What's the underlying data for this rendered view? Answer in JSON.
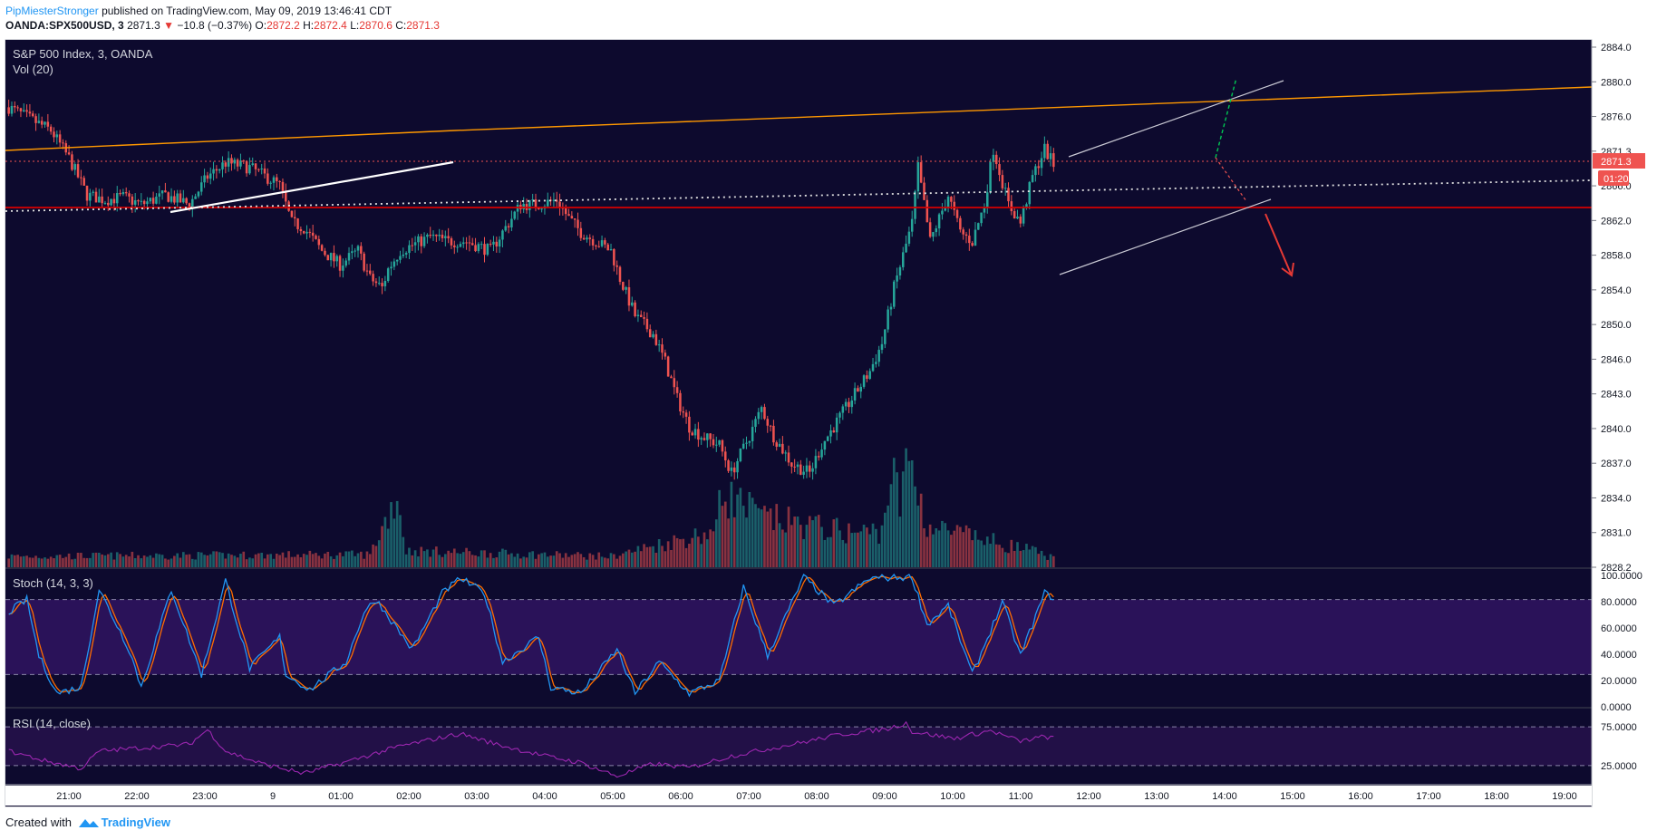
{
  "header": {
    "author": "PipMiesterStronger",
    "published": "published on TradingView.com, May 09, 2019 13:46:41 CDT",
    "symbol": "OANDA:SPX500USD, 3",
    "last": "2871.3",
    "change": "−10.8 (−0.37%)",
    "o_label": "O:",
    "o_val": "2872.2",
    "h_label": "H:",
    "h_val": "2872.4",
    "l_label": "L:",
    "l_val": "2870.6",
    "c_label": "C:",
    "c_val": "2871.3"
  },
  "panes": {
    "main_title": "S&P 500 Index, 3, OANDA",
    "vol_title": "Vol (20)",
    "stoch_title": "Stoch (14, 3, 3)",
    "rsi_title": "RSI (14, close)"
  },
  "price_axis": {
    "ticks": [
      "2884.0",
      "2880.0",
      "2876.0",
      "2871.3",
      "2866.0",
      "2862.0",
      "2858.0",
      "2854.0",
      "2850.0",
      "2846.0",
      "2843.0",
      "2840.0",
      "2837.0",
      "2834.0",
      "2831.0",
      "2828.2"
    ],
    "last_price_tag": "2871.3",
    "countdown_tag": "01:20"
  },
  "stoch_axis": {
    "ticks": [
      "100.0000",
      "80.0000",
      "60.0000",
      "40.0000",
      "20.0000",
      "0.0000"
    ]
  },
  "rsi_axis": {
    "ticks": [
      "75.0000",
      "25.0000"
    ]
  },
  "time_axis": {
    "ticks": [
      "21:00",
      "22:00",
      "23:00",
      "9",
      "01:00",
      "02:00",
      "03:00",
      "04:00",
      "05:00",
      "06:00",
      "07:00",
      "08:00",
      "09:00",
      "10:00",
      "11:00",
      "12:00",
      "13:00",
      "14:00",
      "15:00",
      "16:00",
      "17:00",
      "18:00",
      "19:00"
    ]
  },
  "footer": {
    "created": "Created with",
    "brand": "TradingView"
  },
  "colors": {
    "background": "#0d0a2e",
    "up": "#26a69a",
    "down": "#ef5350",
    "stoch_k": "#2196f3",
    "stoch_d": "#ff6d00",
    "stoch_band": "#2a1259",
    "rsi_line": "#9c27b0",
    "rsi_band": "#221047",
    "trend_orange": "#ff9800",
    "support_red": "#d50000",
    "arrow_red": "#e53935",
    "dotted_green": "#00c853"
  },
  "chart_data": {
    "type": "candlestick",
    "instrument": "S&P 500 Index, 3, OANDA",
    "interval_minutes": 3,
    "price_ylim": [
      2828.2,
      2884.0
    ],
    "time_labels": [
      "21:00",
      "22:00",
      "23:00",
      "9",
      "01:00",
      "02:00",
      "03:00",
      "04:00",
      "05:00",
      "06:00",
      "07:00",
      "08:00",
      "09:00",
      "10:00",
      "11:00",
      "12:00",
      "13:00",
      "14:00",
      "15:00",
      "16:00",
      "17:00",
      "18:00",
      "19:00"
    ],
    "price_path": [
      [
        0,
        2877.5
      ],
      [
        14,
        2875
      ],
      [
        20,
        2872
      ],
      [
        26,
        2868
      ],
      [
        32,
        2867.5
      ],
      [
        38,
        2867.8
      ],
      [
        44,
        2867
      ],
      [
        52,
        2868
      ],
      [
        60,
        2867
      ],
      [
        66,
        2870
      ],
      [
        72,
        2871.5
      ],
      [
        80,
        2871
      ],
      [
        88,
        2869.5
      ],
      [
        90,
        2869
      ],
      [
        94,
        2865
      ],
      [
        98,
        2864.5
      ],
      [
        104,
        2862
      ],
      [
        110,
        2860.5
      ],
      [
        116,
        2862
      ],
      [
        120,
        2859
      ],
      [
        124,
        2858
      ],
      [
        126,
        2860
      ],
      [
        130,
        2862
      ],
      [
        140,
        2863.5
      ],
      [
        146,
        2863
      ],
      [
        152,
        2863
      ],
      [
        160,
        2862
      ],
      [
        166,
        2865
      ],
      [
        170,
        2867
      ],
      [
        176,
        2867
      ],
      [
        182,
        2867.5
      ],
      [
        186,
        2865.5
      ],
      [
        190,
        2864
      ],
      [
        196,
        2862.8
      ],
      [
        200,
        2862
      ],
      [
        203,
        2859
      ],
      [
        208,
        2855
      ],
      [
        214,
        2853
      ],
      [
        218,
        2850
      ],
      [
        222,
        2846
      ],
      [
        226,
        2843
      ],
      [
        230,
        2842
      ],
      [
        236,
        2841
      ],
      [
        240,
        2838
      ],
      [
        246,
        2842
      ],
      [
        250,
        2845
      ],
      [
        254,
        2842
      ],
      [
        260,
        2839
      ],
      [
        266,
        2838
      ],
      [
        270,
        2841
      ],
      [
        276,
        2844
      ],
      [
        280,
        2846
      ],
      [
        286,
        2849
      ],
      [
        290,
        2852
      ],
      [
        294,
        2858
      ],
      [
        300,
        2865
      ],
      [
        302,
        2871
      ],
      [
        306,
        2863
      ],
      [
        312,
        2868
      ],
      [
        316,
        2864
      ],
      [
        320,
        2863
      ],
      [
        324,
        2867
      ],
      [
        327,
        2873
      ],
      [
        332,
        2867
      ],
      [
        336,
        2865
      ],
      [
        340,
        2870
      ],
      [
        344,
        2873
      ],
      [
        347,
        2871.3
      ]
    ],
    "volume_path": [
      [
        0,
        12
      ],
      [
        120,
        14
      ],
      [
        129,
        80
      ],
      [
        132,
        18
      ],
      [
        200,
        12
      ],
      [
        235,
        40
      ],
      [
        236,
        85
      ],
      [
        250,
        55
      ],
      [
        280,
        38
      ],
      [
        290,
        40
      ],
      [
        293,
        108
      ],
      [
        296,
        70
      ],
      [
        299,
        124
      ],
      [
        305,
        45
      ],
      [
        340,
        18
      ],
      [
        347,
        10
      ]
    ],
    "stoch_ylim": [
      0,
      100
    ],
    "stoch_levels": [
      80,
      20
    ],
    "stoch_k_path": [
      [
        0,
        70
      ],
      [
        6,
        80
      ],
      [
        10,
        35
      ],
      [
        16,
        5
      ],
      [
        24,
        10
      ],
      [
        30,
        88
      ],
      [
        40,
        40
      ],
      [
        44,
        10
      ],
      [
        54,
        88
      ],
      [
        64,
        20
      ],
      [
        72,
        95
      ],
      [
        80,
        25
      ],
      [
        90,
        50
      ],
      [
        92,
        20
      ],
      [
        100,
        8
      ],
      [
        112,
        30
      ],
      [
        118,
        70
      ],
      [
        122,
        80
      ],
      [
        134,
        40
      ],
      [
        144,
        85
      ],
      [
        150,
        97
      ],
      [
        158,
        85
      ],
      [
        164,
        30
      ],
      [
        176,
        50
      ],
      [
        180,
        10
      ],
      [
        190,
        5
      ],
      [
        202,
        40
      ],
      [
        208,
        5
      ],
      [
        216,
        30
      ],
      [
        226,
        5
      ],
      [
        236,
        15
      ],
      [
        244,
        90
      ],
      [
        252,
        35
      ],
      [
        264,
        98
      ],
      [
        274,
        75
      ],
      [
        286,
        97
      ],
      [
        300,
        98
      ],
      [
        305,
        60
      ],
      [
        312,
        75
      ],
      [
        320,
        20
      ],
      [
        330,
        78
      ],
      [
        336,
        35
      ],
      [
        340,
        60
      ],
      [
        344,
        85
      ],
      [
        347,
        82
      ]
    ],
    "rsi_ylim": [
      15,
      85
    ],
    "rsi_levels": [
      70,
      30
    ],
    "rsi_path": [
      [
        0,
        45
      ],
      [
        12,
        35
      ],
      [
        24,
        27
      ],
      [
        30,
        45
      ],
      [
        60,
        52
      ],
      [
        66,
        67
      ],
      [
        72,
        45
      ],
      [
        84,
        32
      ],
      [
        98,
        22
      ],
      [
        110,
        32
      ],
      [
        130,
        50
      ],
      [
        150,
        63
      ],
      [
        162,
        52
      ],
      [
        178,
        40
      ],
      [
        190,
        33
      ],
      [
        202,
        19
      ],
      [
        214,
        32
      ],
      [
        226,
        28
      ],
      [
        240,
        40
      ],
      [
        262,
        53
      ],
      [
        276,
        62
      ],
      [
        292,
        68
      ],
      [
        298,
        74
      ],
      [
        300,
        65
      ],
      [
        314,
        58
      ],
      [
        326,
        66
      ],
      [
        336,
        55
      ],
      [
        344,
        60
      ],
      [
        347,
        58
      ]
    ],
    "drawings": {
      "orange_channel_top": [
        [
          2873.2
        ],
        [
          2879.7
        ]
      ],
      "red_horizontal": 2866.5,
      "red_dotted_last": 2871.3,
      "white_dotted_slope": [
        [
          2866.0
        ],
        [
          2869.0
        ]
      ]
    }
  }
}
